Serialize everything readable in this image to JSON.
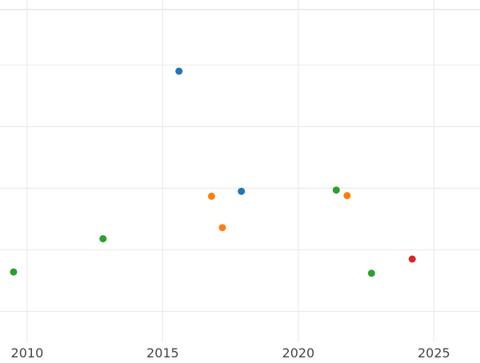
{
  "chart_data": {
    "type": "scatter",
    "title": "",
    "xlabel": "",
    "ylabel": "",
    "grid": true,
    "xlim": [
      2009.0,
      2026.7
    ],
    "ylim": [
      0,
      5.4
    ],
    "xticks": [
      2010,
      2015,
      2020,
      2025
    ],
    "xtick_labels": [
      "2010",
      "2015",
      "2020",
      "2025"
    ],
    "yticks": [
      0.5,
      1.5,
      2.5,
      3.5,
      4.5
    ],
    "series": [
      {
        "color": "#1f77b4",
        "points": [
          {
            "x": 2015.6,
            "y": 4.4
          },
          {
            "x": 2017.9,
            "y": 2.45
          }
        ]
      },
      {
        "color": "#ff7f0e",
        "points": [
          {
            "x": 2016.8,
            "y": 2.37
          },
          {
            "x": 2017.2,
            "y": 1.86
          },
          {
            "x": 2021.8,
            "y": 2.38
          }
        ]
      },
      {
        "color": "#2ca02c",
        "points": [
          {
            "x": 2009.5,
            "y": 1.14
          },
          {
            "x": 2012.8,
            "y": 1.68
          },
          {
            "x": 2021.4,
            "y": 2.47
          },
          {
            "x": 2022.7,
            "y": 1.12
          }
        ]
      },
      {
        "color": "#d62728",
        "points": [
          {
            "x": 2024.2,
            "y": 1.35
          }
        ]
      }
    ]
  }
}
